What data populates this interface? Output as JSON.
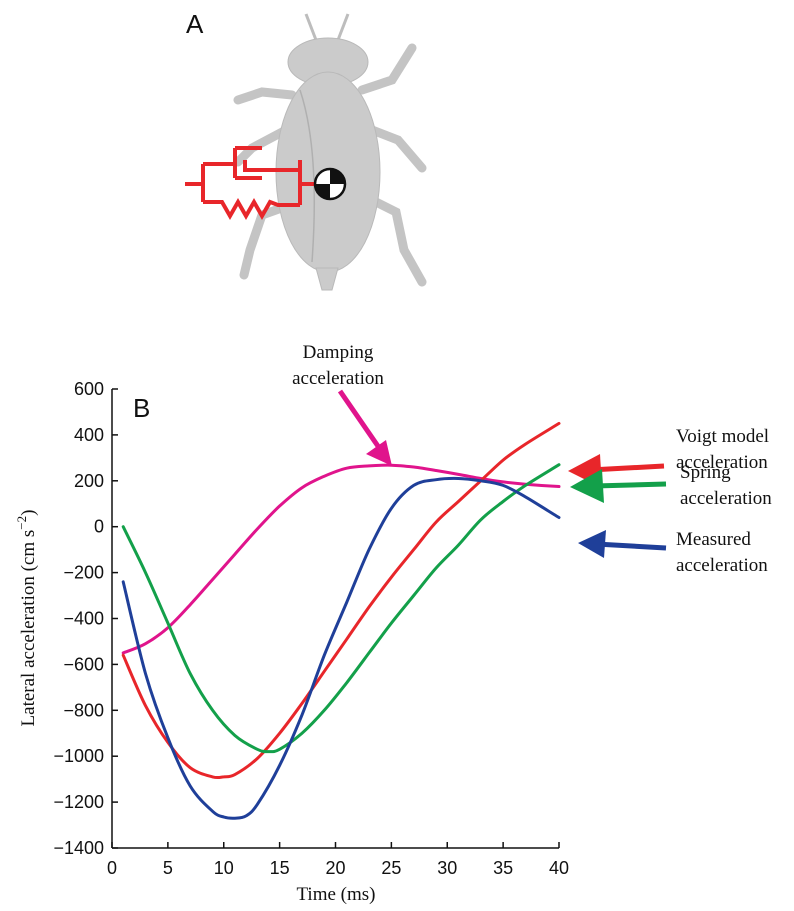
{
  "panel_a": {
    "label": "A"
  },
  "panel_b": {
    "label": "B"
  },
  "colors": {
    "damping": "#e0148c",
    "voigt": "#e8262a",
    "spring": "#13a04a",
    "measured": "#1f3f99",
    "insect": "#c8c8c8",
    "model": "#e8262a"
  },
  "chart_data": {
    "type": "line",
    "xlabel": "Time (ms)",
    "ylabel": "Lateral acceleration (cm s⁻²)",
    "ylabel_main": "Lateral acceleration (cm s",
    "ylabel_sup": "−2",
    "ylabel_close": ")",
    "xlim": [
      0,
      40
    ],
    "ylim": [
      -1400,
      600
    ],
    "xticks": [
      0,
      5,
      10,
      15,
      20,
      25,
      30,
      35,
      40
    ],
    "yticks": [
      -1400,
      -1200,
      -1000,
      -800,
      -600,
      -400,
      -200,
      0,
      200,
      400,
      600
    ],
    "ytick_labels": [
      "−1400",
      "−1200",
      "−1000",
      "−800",
      "−600",
      "−400",
      "−200",
      "0",
      "200",
      "400",
      "600"
    ],
    "series": [
      {
        "key": "damping",
        "x": [
          1,
          3,
          5,
          7,
          9,
          11,
          13,
          15,
          17,
          19,
          21,
          23,
          25,
          27,
          29,
          31,
          33,
          35,
          37,
          40
        ],
        "y": [
          -550,
          -510,
          -440,
          -340,
          -230,
          -120,
          -10,
          90,
          170,
          220,
          255,
          265,
          268,
          260,
          245,
          228,
          210,
          195,
          185,
          175
        ]
      },
      {
        "key": "voigt",
        "x": [
          1,
          3,
          5,
          7,
          9,
          10,
          11,
          13,
          15,
          17,
          19,
          21,
          23,
          25,
          27,
          29,
          31,
          33,
          35,
          37,
          40
        ],
        "y": [
          -560,
          -780,
          -940,
          -1050,
          -1090,
          -1090,
          -1080,
          -1010,
          -900,
          -770,
          -630,
          -490,
          -350,
          -220,
          -100,
          20,
          110,
          200,
          290,
          360,
          450
        ]
      },
      {
        "key": "spring",
        "x": [
          1,
          3,
          5,
          7,
          9,
          11,
          13,
          14,
          15,
          17,
          19,
          21,
          23,
          25,
          27,
          29,
          31,
          33,
          35,
          37,
          40
        ],
        "y": [
          0,
          -200,
          -420,
          -640,
          -800,
          -910,
          -970,
          -980,
          -970,
          -900,
          -800,
          -680,
          -550,
          -420,
          -300,
          -180,
          -80,
          30,
          110,
          180,
          270
        ]
      },
      {
        "key": "measured",
        "x": [
          1,
          3,
          5,
          7,
          9,
          10,
          11,
          12,
          13,
          15,
          17,
          19,
          21,
          23,
          25,
          27,
          29,
          31,
          33,
          35,
          37,
          39,
          40
        ],
        "y": [
          -240,
          -640,
          -920,
          -1130,
          -1240,
          -1265,
          -1270,
          -1260,
          -1210,
          -1040,
          -820,
          -560,
          -330,
          -100,
          80,
          180,
          205,
          210,
          200,
          180,
          130,
          70,
          40
        ]
      }
    ]
  },
  "annotations": {
    "damping": [
      "Damping",
      "acceleration"
    ],
    "voigt": [
      "Voigt model",
      "acceleration"
    ],
    "spring": [
      "Spring",
      "acceleration"
    ],
    "measured": [
      "Measured",
      "acceleration"
    ]
  }
}
